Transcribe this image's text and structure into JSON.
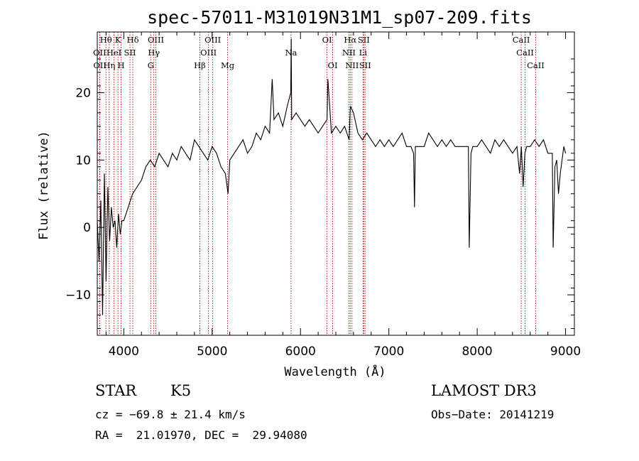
{
  "chart_data": {
    "type": "line",
    "title": "spec-57011-M31019N31M1_sp07-209.fits",
    "xlabel": "Wavelength (Å)",
    "ylabel": "Flux (relative)",
    "xlim": [
      3700,
      9100
    ],
    "ylim": [
      -16,
      29
    ],
    "xticks": [
      4000,
      5000,
      6000,
      7000,
      8000,
      9000
    ],
    "xtick_labels": [
      "4000",
      "5000",
      "6000",
      "7000",
      "8000",
      "9000"
    ],
    "yticks": [
      -10,
      0,
      10,
      20
    ],
    "ytick_labels": [
      "−10",
      "0",
      "10",
      "20"
    ],
    "series": [
      {
        "name": "flux",
        "x": [
          3700,
          3720,
          3740,
          3760,
          3780,
          3800,
          3820,
          3840,
          3860,
          3880,
          3900,
          3920,
          3940,
          3960,
          3980,
          4000,
          4050,
          4100,
          4150,
          4200,
          4250,
          4300,
          4350,
          4400,
          4450,
          4500,
          4550,
          4600,
          4650,
          4700,
          4750,
          4800,
          4850,
          4900,
          4950,
          5000,
          5050,
          5100,
          5150,
          5180,
          5200,
          5250,
          5300,
          5350,
          5400,
          5450,
          5500,
          5550,
          5600,
          5650,
          5680,
          5700,
          5750,
          5800,
          5850,
          5890,
          5895,
          5900,
          5950,
          6000,
          6050,
          6100,
          6150,
          6200,
          6250,
          6300,
          6310,
          6350,
          6400,
          6450,
          6500,
          6550,
          6565,
          6600,
          6650,
          6700,
          6750,
          6800,
          6850,
          6900,
          6950,
          7000,
          7050,
          7100,
          7150,
          7200,
          7250,
          7280,
          7290,
          7300,
          7350,
          7400,
          7450,
          7500,
          7550,
          7600,
          7650,
          7700,
          7750,
          7800,
          7850,
          7900,
          7910,
          7930,
          7950,
          8000,
          8050,
          8100,
          8150,
          8200,
          8250,
          8300,
          8350,
          8400,
          8450,
          8480,
          8500,
          8520,
          8540,
          8560,
          8600,
          8650,
          8700,
          8750,
          8800,
          8850,
          8860,
          8880,
          8900,
          8920,
          8940,
          8960,
          8980,
          9000
        ],
        "y": [
          1,
          -5,
          4,
          -13,
          8,
          -8,
          6,
          -2,
          3,
          0,
          1,
          -3,
          2,
          -1,
          1,
          1,
          3,
          5,
          6,
          7,
          9,
          10,
          9,
          11,
          10,
          9,
          11,
          10,
          12,
          11,
          10,
          13,
          12,
          11,
          10,
          12,
          11,
          9,
          8,
          5,
          10,
          11,
          12,
          13,
          11,
          12,
          14,
          13,
          15,
          14,
          22,
          16,
          17,
          15,
          18,
          20,
          28,
          16,
          17,
          16,
          15,
          16,
          15,
          14,
          15,
          16,
          22,
          14,
          15,
          14,
          15,
          13,
          18,
          17,
          14,
          13,
          14,
          13,
          12,
          13,
          12,
          13,
          12,
          13,
          14,
          12,
          12,
          11,
          3,
          12,
          12,
          12,
          14,
          13,
          12,
          13,
          12,
          13,
          12,
          12,
          12,
          12,
          -3,
          11,
          12,
          12,
          13,
          12,
          11,
          13,
          12,
          13,
          12,
          11,
          12,
          8,
          12,
          6,
          11,
          12,
          12,
          13,
          12,
          13,
          11,
          11,
          -3,
          9,
          10,
          5,
          8,
          10,
          12,
          11
        ]
      }
    ],
    "line_markers": [
      {
        "label": "Hθ",
        "x": 3798,
        "row": 0
      },
      {
        "label": "K",
        "x": 3934,
        "row": 0
      },
      {
        "label": "Hδ",
        "x": 4102,
        "row": 0
      },
      {
        "label": "OIII",
        "x": 4363,
        "row": 0
      },
      {
        "label": "OIII",
        "x": 5007,
        "row": 0
      },
      {
        "label": "Na",
        "x": 5893,
        "row": 1
      },
      {
        "label": "OI",
        "x": 6300,
        "row": 0
      },
      {
        "label": "Hα",
        "x": 6563,
        "row": 0
      },
      {
        "label": "SII",
        "x": 6716,
        "row": 0
      },
      {
        "label": "CaII",
        "x": 8498,
        "row": 0
      },
      {
        "label": "OII",
        "x": 3727,
        "row": 1
      },
      {
        "label": "HeI",
        "x": 3889,
        "row": 1
      },
      {
        "label": "SII",
        "x": 4070,
        "row": 1
      },
      {
        "label": "Hγ",
        "x": 4340,
        "row": 1
      },
      {
        "label": "OIII",
        "x": 4959,
        "row": 1
      },
      {
        "label": "NII",
        "x": 6548,
        "row": 1
      },
      {
        "label": "Li",
        "x": 6708,
        "row": 1
      },
      {
        "label": "CaII",
        "x": 8542,
        "row": 1
      },
      {
        "label": "OII",
        "x": 3729,
        "row": 2
      },
      {
        "label": "Hη",
        "x": 3835,
        "row": 2
      },
      {
        "label": "H",
        "x": 3969,
        "row": 2
      },
      {
        "label": "G",
        "x": 4305,
        "row": 2
      },
      {
        "label": "Hβ",
        "x": 4861,
        "row": 2
      },
      {
        "label": "Mg",
        "x": 5175,
        "row": 2
      },
      {
        "label": "OI",
        "x": 6364,
        "row": 2
      },
      {
        "label": "NII",
        "x": 6583,
        "row": 2
      },
      {
        "label": "SII",
        "x": 6731,
        "row": 2
      },
      {
        "label": "CaII",
        "x": 8662,
        "row": 2
      }
    ]
  },
  "info": {
    "object_class": "STAR",
    "subclass": "K5",
    "survey": "LAMOST DR3",
    "redshift": "cz = −69.8 ± 21.4 km/s",
    "obs_date": "Obs−Date: 20141219",
    "coords": "RA =  21.01970, DEC =  29.94080"
  }
}
